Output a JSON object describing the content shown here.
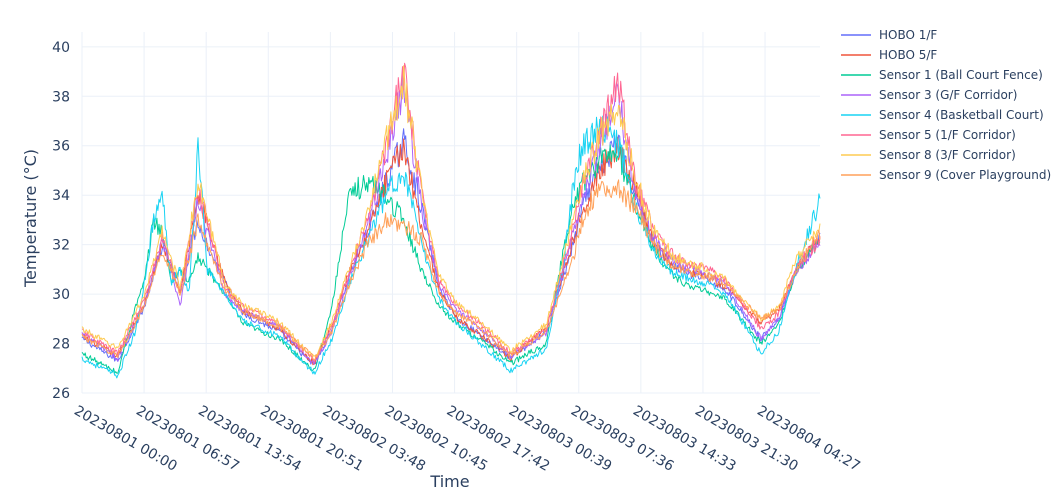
{
  "chart_data": {
    "type": "line",
    "xlabel": "Time",
    "ylabel": "Temperature (°C)",
    "ylim": [
      26,
      40.6
    ],
    "yticks": [
      26,
      28,
      30,
      32,
      34,
      36,
      38,
      40
    ],
    "xtick_labels": [
      "20230801 00:00",
      "20230801 06:57",
      "20230801 13:54",
      "20230801 20:51",
      "20230802 03:48",
      "20230802 10:45",
      "20230802 17:42",
      "20230803 00:39",
      "20230803 07:36",
      "20230803 14:33",
      "20230803 21:30",
      "20230804 04:27"
    ],
    "x_unit": "hours since 20230801 00:00",
    "xlim": [
      0,
      82.6
    ],
    "grid": true,
    "legend_position": "right",
    "series": [
      {
        "name": "HOBO 1/F",
        "color": "#636efa",
        "x": [
          0,
          4,
          7,
          9,
          11,
          13,
          14,
          16,
          18,
          22,
          26,
          28,
          30,
          32,
          34,
          36,
          38,
          40,
          42,
          44,
          48,
          52,
          55,
          56,
          58,
          60,
          62,
          64,
          66,
          68,
          70,
          72,
          76,
          78,
          80,
          82.6
        ],
        "y": [
          28.2,
          27.3,
          29.5,
          32.0,
          30.2,
          33.0,
          32.0,
          30.5,
          29.2,
          28.5,
          27.1,
          28.6,
          30.8,
          32.5,
          34.5,
          36.2,
          33.5,
          30.2,
          29.0,
          28.5,
          27.4,
          28.5,
          32.0,
          33.5,
          35.0,
          36.2,
          34.0,
          32.0,
          31.2,
          30.8,
          30.6,
          30.2,
          28.2,
          29.0,
          31.0,
          32.2
        ]
      },
      {
        "name": "HOBO 5/F",
        "color": "#ef553b",
        "x": [
          0,
          4,
          7,
          9,
          11,
          13,
          14,
          16,
          18,
          22,
          26,
          28,
          30,
          32,
          34,
          36,
          38,
          40,
          42,
          44,
          48,
          52,
          55,
          56,
          58,
          60,
          62,
          64,
          66,
          68,
          70,
          72,
          76,
          78,
          80,
          82.6
        ],
        "y": [
          28.3,
          27.5,
          29.6,
          32.0,
          30.1,
          34.0,
          33.0,
          30.5,
          29.3,
          28.6,
          27.2,
          28.8,
          31.0,
          32.5,
          34.5,
          36.0,
          32.8,
          30.1,
          29.0,
          28.5,
          27.4,
          28.7,
          32.2,
          33.5,
          35.0,
          36.0,
          34.2,
          32.0,
          31.2,
          30.9,
          30.7,
          30.3,
          28.8,
          29.4,
          31.0,
          32.4
        ]
      },
      {
        "name": "Sensor 1 (Ball Court Fence)",
        "color": "#00cc96",
        "x": [
          0,
          4,
          6,
          7,
          8,
          9,
          10,
          11,
          12,
          13,
          14,
          16,
          18,
          22,
          26,
          28,
          29,
          30,
          31,
          32,
          33,
          34,
          35,
          36,
          38,
          40,
          42,
          44,
          48,
          52,
          54,
          55,
          56,
          58,
          60,
          62,
          64,
          66,
          68,
          70,
          72,
          76,
          78,
          80,
          82.6
        ],
        "y": [
          27.6,
          26.8,
          29.5,
          30.5,
          33.0,
          32.5,
          30.5,
          31.0,
          30.5,
          31.5,
          31.0,
          30.0,
          28.8,
          28.2,
          26.9,
          29.5,
          32.0,
          34.0,
          34.3,
          34.5,
          34.3,
          34.0,
          33.5,
          33.0,
          31.0,
          29.5,
          28.8,
          28.3,
          27.2,
          28.0,
          32.0,
          33.5,
          34.5,
          35.5,
          35.8,
          33.5,
          31.8,
          30.8,
          30.3,
          30.1,
          29.8,
          28.0,
          28.8,
          31.0,
          32.2
        ]
      },
      {
        "name": "Sensor 3 (G/F Corridor)",
        "color": "#ab63fa",
        "x": [
          0,
          4,
          7,
          9,
          11,
          13,
          14,
          16,
          18,
          22,
          26,
          28,
          30,
          32,
          34,
          36,
          38,
          40,
          42,
          44,
          48,
          52,
          55,
          56,
          58,
          60,
          62,
          64,
          66,
          68,
          70,
          72,
          76,
          78,
          80,
          82.6
        ],
        "y": [
          28.4,
          27.4,
          29.6,
          32.2,
          29.5,
          33.8,
          32.5,
          30.0,
          29.3,
          28.7,
          27.2,
          28.5,
          30.8,
          32.8,
          35.5,
          38.5,
          33.5,
          30.3,
          29.3,
          28.8,
          27.5,
          28.4,
          32.5,
          34.0,
          36.0,
          38.0,
          34.0,
          32.2,
          31.4,
          31.0,
          30.8,
          30.4,
          28.2,
          29.0,
          31.0,
          32.0
        ]
      },
      {
        "name": "Sensor 4 (Basketball Court)",
        "color": "#19d3f3",
        "x": [
          0,
          4,
          6,
          7,
          8,
          9,
          10,
          11,
          12,
          13,
          14,
          16,
          18,
          22,
          26,
          28,
          30,
          32,
          34,
          36,
          38,
          40,
          42,
          44,
          48,
          52,
          54,
          55,
          56,
          58,
          60,
          62,
          64,
          66,
          68,
          70,
          72,
          76,
          78,
          80,
          82.6
        ],
        "y": [
          27.4,
          26.7,
          28.5,
          30.5,
          33.0,
          34.0,
          30.5,
          31.0,
          30.0,
          36.2,
          31.0,
          30.0,
          28.9,
          28.3,
          26.8,
          28.2,
          30.5,
          32.2,
          34.0,
          35.0,
          32.0,
          29.8,
          28.8,
          28.2,
          26.9,
          27.8,
          31.5,
          34.5,
          36.0,
          36.8,
          36.2,
          33.5,
          31.8,
          30.9,
          30.6,
          30.4,
          30.0,
          27.6,
          28.5,
          31.2,
          33.8
        ]
      },
      {
        "name": "Sensor 5 (1/F Corridor)",
        "color": "#ff6692",
        "x": [
          0,
          4,
          7,
          9,
          11,
          13,
          14,
          16,
          18,
          22,
          26,
          28,
          30,
          32,
          34,
          36,
          38,
          40,
          42,
          44,
          48,
          52,
          55,
          56,
          58,
          60,
          62,
          64,
          66,
          68,
          70,
          72,
          76,
          78,
          80,
          82.6
        ],
        "y": [
          28.5,
          27.6,
          29.8,
          32.3,
          30.0,
          34.2,
          33.0,
          30.2,
          29.5,
          28.8,
          27.3,
          28.7,
          31.0,
          33.0,
          36.0,
          39.0,
          34.0,
          30.5,
          29.5,
          29.0,
          27.6,
          28.6,
          32.8,
          34.5,
          36.5,
          38.5,
          34.5,
          32.5,
          31.6,
          31.2,
          31.0,
          30.6,
          28.6,
          29.2,
          31.2,
          32.2
        ]
      },
      {
        "name": "Sensor 8 (3/F Corridor)",
        "color": "#fecb52",
        "x": [
          0,
          4,
          7,
          9,
          11,
          13,
          14,
          16,
          18,
          22,
          26,
          28,
          30,
          32,
          34,
          36,
          38,
          40,
          42,
          44,
          48,
          52,
          55,
          56,
          58,
          60,
          62,
          64,
          66,
          68,
          70,
          72,
          76,
          78,
          80,
          82.6
        ],
        "y": [
          28.6,
          27.8,
          30.0,
          32.5,
          30.3,
          34.5,
          33.2,
          30.4,
          29.6,
          28.9,
          27.4,
          28.9,
          31.2,
          33.2,
          36.2,
          38.6,
          34.2,
          30.8,
          29.6,
          29.1,
          27.7,
          28.8,
          33.0,
          34.5,
          36.5,
          37.5,
          34.6,
          32.6,
          31.6,
          31.2,
          31.0,
          30.6,
          29.0,
          29.5,
          31.5,
          32.6
        ]
      },
      {
        "name": "Sensor 9 (Cover Playground)",
        "color": "#ffa15a",
        "x": [
          0,
          4,
          7,
          9,
          11,
          13,
          14,
          16,
          18,
          22,
          26,
          28,
          30,
          32,
          34,
          36,
          38,
          40,
          42,
          44,
          48,
          52,
          55,
          56,
          58,
          60,
          62,
          64,
          66,
          68,
          70,
          72,
          76,
          78,
          80,
          82.6
        ],
        "y": [
          28.3,
          27.5,
          29.5,
          31.8,
          30.0,
          33.0,
          32.0,
          30.2,
          29.3,
          28.7,
          27.4,
          28.5,
          30.5,
          32.0,
          33.0,
          32.8,
          32.2,
          30.0,
          29.2,
          28.8,
          27.5,
          28.5,
          31.5,
          33.0,
          34.5,
          34.2,
          33.5,
          32.0,
          31.2,
          30.9,
          30.7,
          30.4,
          29.0,
          29.4,
          31.0,
          32.5
        ]
      }
    ]
  }
}
